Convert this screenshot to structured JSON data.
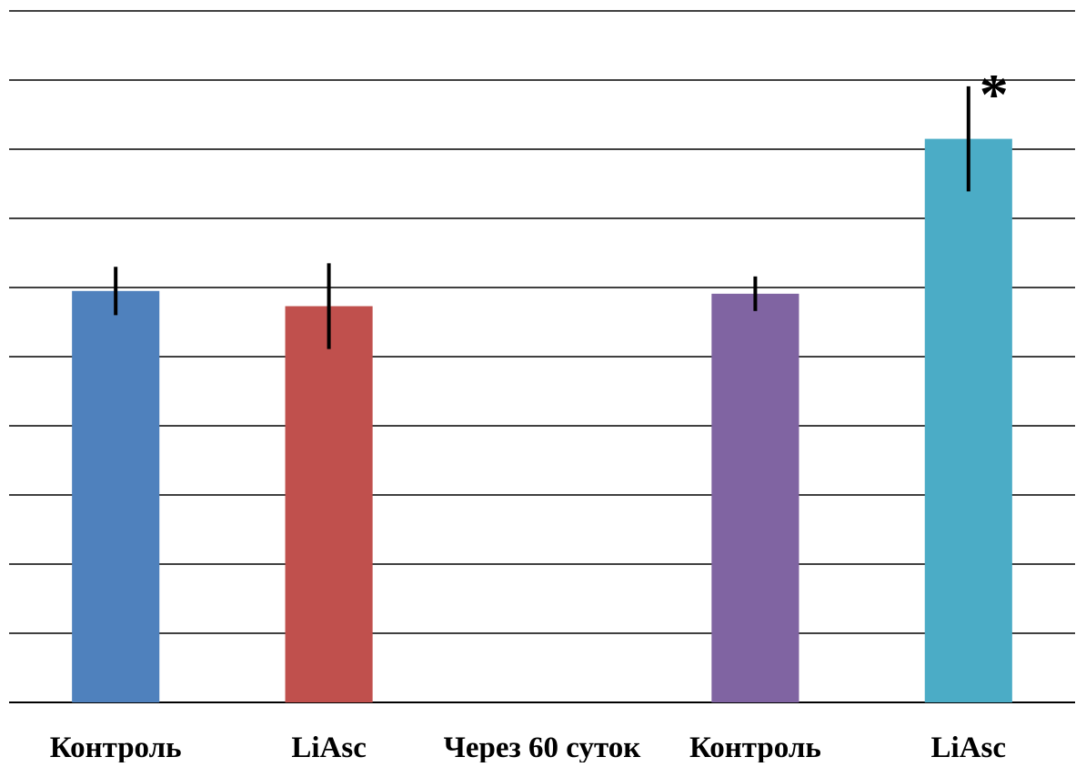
{
  "chart_data": {
    "type": "bar",
    "categories": [
      "Контроль",
      "LiAsc",
      "Через 60 суток",
      "Контроль",
      "LiAsc"
    ],
    "values": [
      5.95,
      5.73,
      null,
      5.91,
      8.15
    ],
    "errors": [
      0.35,
      0.62,
      null,
      0.25,
      0.76
    ],
    "ylim": [
      0,
      10
    ],
    "grid": true,
    "legend": "none",
    "colors": [
      "#4f81bd",
      "#c0504d",
      null,
      "#8064a2",
      "#4bacc6"
    ],
    "annotations": [
      {
        "category_index": 4,
        "text": "*"
      }
    ]
  }
}
